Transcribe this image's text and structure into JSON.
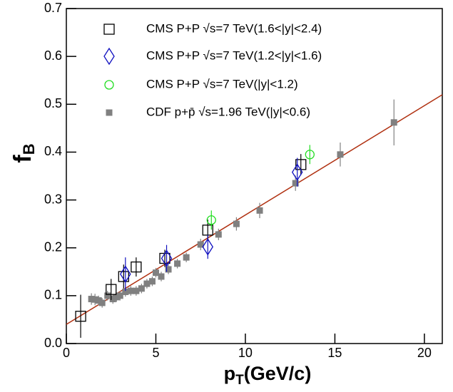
{
  "chart_data": {
    "type": "scatter",
    "x_label": "p",
    "x_label_sub": "T",
    "x_label_suffix": "(GeV/c)",
    "y_label": "f",
    "y_label_sub": "B",
    "xlim": [
      0,
      21
    ],
    "ylim": [
      0,
      0.7
    ],
    "xticks": [
      0,
      5,
      10,
      15,
      20
    ],
    "yticks": [
      {
        "value": 0,
        "label": "0.0"
      },
      0.1,
      0.2,
      0.3,
      0.4,
      0.5,
      0.6,
      0.7
    ],
    "series": [
      {
        "name": "CMS P+P √s=7 TeV(1.6<|y|<2.4)",
        "color": "#000000",
        "marker": "square",
        "x": [
          0.8,
          2.5,
          3.2,
          3.9,
          5.5,
          7.9,
          13.1
        ],
        "values": [
          0.057,
          0.113,
          0.14,
          0.16,
          0.178,
          0.237,
          0.374
        ],
        "errors": [
          0.045,
          0.022,
          0.025,
          0.02,
          0.018,
          0.022,
          0.022
        ]
      },
      {
        "name": "CMS P+P √s=7 TeV(1.2<|y|<1.6)",
        "color": "#1010c0",
        "marker": "diamond",
        "x": [
          3.3,
          5.6,
          7.9,
          12.9
        ],
        "values": [
          0.145,
          0.178,
          0.202,
          0.358
        ],
        "errors": [
          0.035,
          0.028,
          0.025,
          0.03
        ]
      },
      {
        "name": "CMS P+P √s=7 TeV(|y|<1.2)",
        "color": "#20dd20",
        "marker": "circle",
        "x": [
          8.1,
          13.6
        ],
        "values": [
          0.258,
          0.395
        ],
        "errors": [
          0.02,
          0.02
        ]
      },
      {
        "name": "CDF p+p̄ √s=1.96 TeV(|y|<0.6)",
        "color": "#808080",
        "marker": "filled-square",
        "x": [
          1.4,
          1.6,
          1.8,
          2.0,
          2.3,
          2.6,
          2.8,
          3.0,
          3.3,
          3.6,
          3.9,
          4.2,
          4.5,
          4.8,
          5.0,
          5.3,
          5.7,
          6.2,
          6.7,
          7.5,
          8.5,
          9.5,
          10.8,
          12.8,
          15.3,
          18.3
        ],
        "values": [
          0.093,
          0.092,
          0.09,
          0.085,
          0.1,
          0.093,
          0.097,
          0.1,
          0.108,
          0.11,
          0.11,
          0.115,
          0.125,
          0.13,
          0.148,
          0.14,
          0.155,
          0.167,
          0.18,
          0.207,
          0.228,
          0.25,
          0.278,
          0.335,
          0.395,
          0.462
        ],
        "errors": [
          0.012,
          0.012,
          0.01,
          0.01,
          0.01,
          0.01,
          0.01,
          0.01,
          0.01,
          0.01,
          0.01,
          0.01,
          0.01,
          0.01,
          0.01,
          0.01,
          0.01,
          0.01,
          0.01,
          0.012,
          0.012,
          0.014,
          0.016,
          0.016,
          0.025,
          0.048
        ]
      }
    ],
    "fit": {
      "color": "#b03010",
      "x": [
        0,
        21
      ],
      "values": [
        0.04,
        0.52
      ]
    }
  }
}
